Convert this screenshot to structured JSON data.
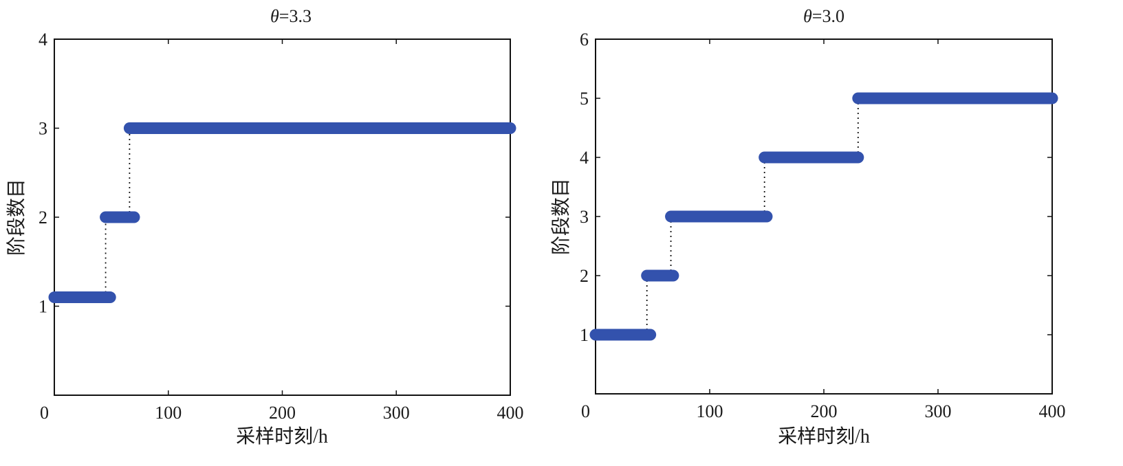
{
  "chart_data": [
    {
      "type": "line",
      "title_var": "θ",
      "title_value": "=3.3",
      "xlabel": "采样时刻/h",
      "ylabel": "阶段数目",
      "xlim": [
        0,
        400
      ],
      "ylim": [
        0,
        4
      ],
      "xticks": [
        "0",
        "100",
        "200",
        "300",
        "400"
      ],
      "yticks": [
        "1",
        "2",
        "3",
        "4"
      ],
      "series_color": "#3352ad",
      "segments": [
        {
          "x_start": 0,
          "x_end": 49,
          "y": 1.1
        },
        {
          "x_start": 45,
          "x_end": 70,
          "y": 2.0
        },
        {
          "x_start": 66,
          "x_end": 400,
          "y": 3.0
        }
      ],
      "transitions": [
        {
          "x": 45,
          "y_from": 1.1,
          "y_to": 2.0
        },
        {
          "x": 66,
          "y_from": 2.0,
          "y_to": 3.0
        }
      ]
    },
    {
      "type": "line",
      "title_var": "θ",
      "title_value": "=3.0",
      "xlabel": "采样时刻/h",
      "ylabel": "阶段数目",
      "xlim": [
        0,
        400
      ],
      "ylim": [
        0,
        6
      ],
      "xticks": [
        "0",
        "100",
        "200",
        "300",
        "400"
      ],
      "yticks": [
        "1",
        "2",
        "3",
        "4",
        "5",
        "6"
      ],
      "series_color": "#3352ad",
      "segments": [
        {
          "x_start": 0,
          "x_end": 48,
          "y": 1.0
        },
        {
          "x_start": 45,
          "x_end": 68,
          "y": 2.0
        },
        {
          "x_start": 66,
          "x_end": 150,
          "y": 3.0
        },
        {
          "x_start": 148,
          "x_end": 230,
          "y": 4.0
        },
        {
          "x_start": 230,
          "x_end": 400,
          "y": 5.0
        }
      ],
      "transitions": [
        {
          "x": 45,
          "y_from": 1.0,
          "y_to": 2.0
        },
        {
          "x": 66,
          "y_from": 2.0,
          "y_to": 3.0
        },
        {
          "x": 148,
          "y_from": 3.0,
          "y_to": 4.0
        },
        {
          "x": 230,
          "y_from": 4.0,
          "y_to": 5.0
        }
      ]
    }
  ]
}
